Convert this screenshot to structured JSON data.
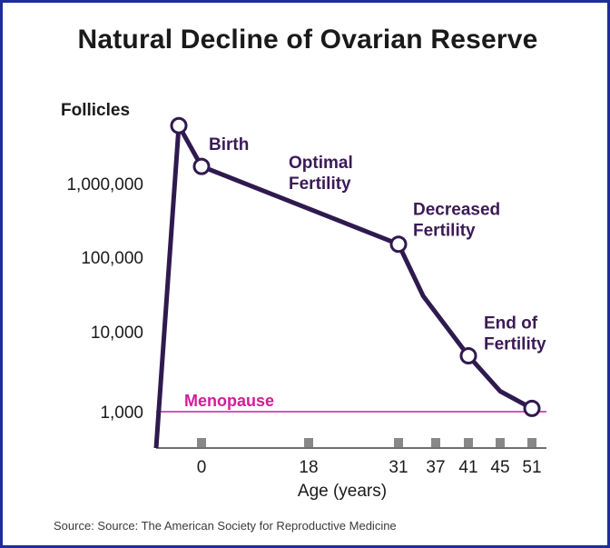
{
  "chart_data": {
    "type": "line",
    "title": "Natural Decline of Ovarian Reserve",
    "ylabel": "Follicles",
    "xlabel": "Age (years)",
    "source": "Source: Source: The American Society for Reproductive Medicine",
    "y_scale": "log",
    "y_ticks": [
      {
        "value": 1000,
        "label": "1,000"
      },
      {
        "value": 10000,
        "label": "10,000"
      },
      {
        "value": 100000,
        "label": "100,000"
      },
      {
        "value": 1000000,
        "label": "1,000,000"
      }
    ],
    "x_ticks": [
      {
        "value": 0,
        "label": "0"
      },
      {
        "value": 18,
        "label": "18"
      },
      {
        "value": 31,
        "label": "31"
      },
      {
        "value": 37,
        "label": "37"
      },
      {
        "value": 41,
        "label": "41"
      },
      {
        "value": 45,
        "label": "45"
      },
      {
        "value": 51,
        "label": "51"
      }
    ],
    "series": [
      {
        "points": [
          {
            "x": -6,
            "y": 500
          },
          {
            "x": -3,
            "y": 6000000
          },
          {
            "x": 0,
            "y": 1700000
          },
          {
            "x": 31,
            "y": 150000
          },
          {
            "x": 35,
            "y": 30000
          },
          {
            "x": 41,
            "y": 5000
          },
          {
            "x": 45,
            "y": 1800
          },
          {
            "x": 51,
            "y": 1100
          }
        ],
        "color": "#2f1a4f"
      }
    ],
    "markers": [
      {
        "x": -3,
        "y": 6000000
      },
      {
        "x": 0,
        "y": 1700000,
        "label": [
          "Birth"
        ]
      },
      {
        "x": 31,
        "y": 150000,
        "label": [
          "Decreased",
          "Fertility"
        ]
      },
      {
        "x": 41,
        "y": 5000,
        "label": [
          "End of",
          "Fertility"
        ]
      },
      {
        "x": 51,
        "y": 1100
      }
    ],
    "annotations": [
      {
        "text": [
          "Optimal",
          "Fertility"
        ],
        "x": 18,
        "y": 1000000
      }
    ],
    "reference_line": {
      "y": 1000,
      "label": "Menopause",
      "color": "#d21d9a"
    },
    "grid": false
  }
}
